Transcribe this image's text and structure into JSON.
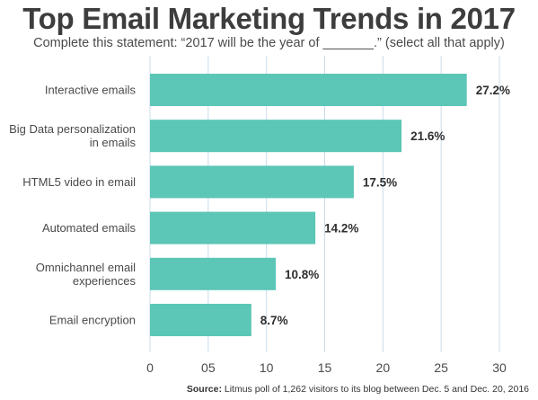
{
  "chart_data": {
    "type": "bar",
    "orientation": "horizontal",
    "title": "Top Email Marketing Trends in 2017",
    "subtitle": "Complete this statement: “2017 will be the year of _______.” (select all that apply)",
    "categories": [
      [
        "Interactive emails"
      ],
      [
        "Big Data personalization",
        "in emails"
      ],
      [
        "HTML5 video in email"
      ],
      [
        "Automated emails"
      ],
      [
        "Omnichannel email",
        "experiences"
      ],
      [
        "Email encryption"
      ]
    ],
    "values": [
      27.2,
      21.6,
      17.5,
      14.2,
      10.8,
      8.7
    ],
    "value_labels": [
      "27.2%",
      "21.6%",
      "17.5%",
      "14.2%",
      "10.8%",
      "8.7%"
    ],
    "xlim": [
      0,
      30
    ],
    "xticks": [
      0,
      5,
      10,
      15,
      20,
      25,
      30
    ],
    "xtick_labels": [
      "0",
      "05",
      "10",
      "15",
      "20",
      "25",
      "30"
    ],
    "grid": true,
    "bar_color": "#5cc6b7",
    "grid_color": "#c9dcea"
  },
  "source": {
    "label": "Source:",
    "text": " Litmus poll of 1,262 visitors to its blog between Dec. 5 and Dec. 20, 2016"
  }
}
